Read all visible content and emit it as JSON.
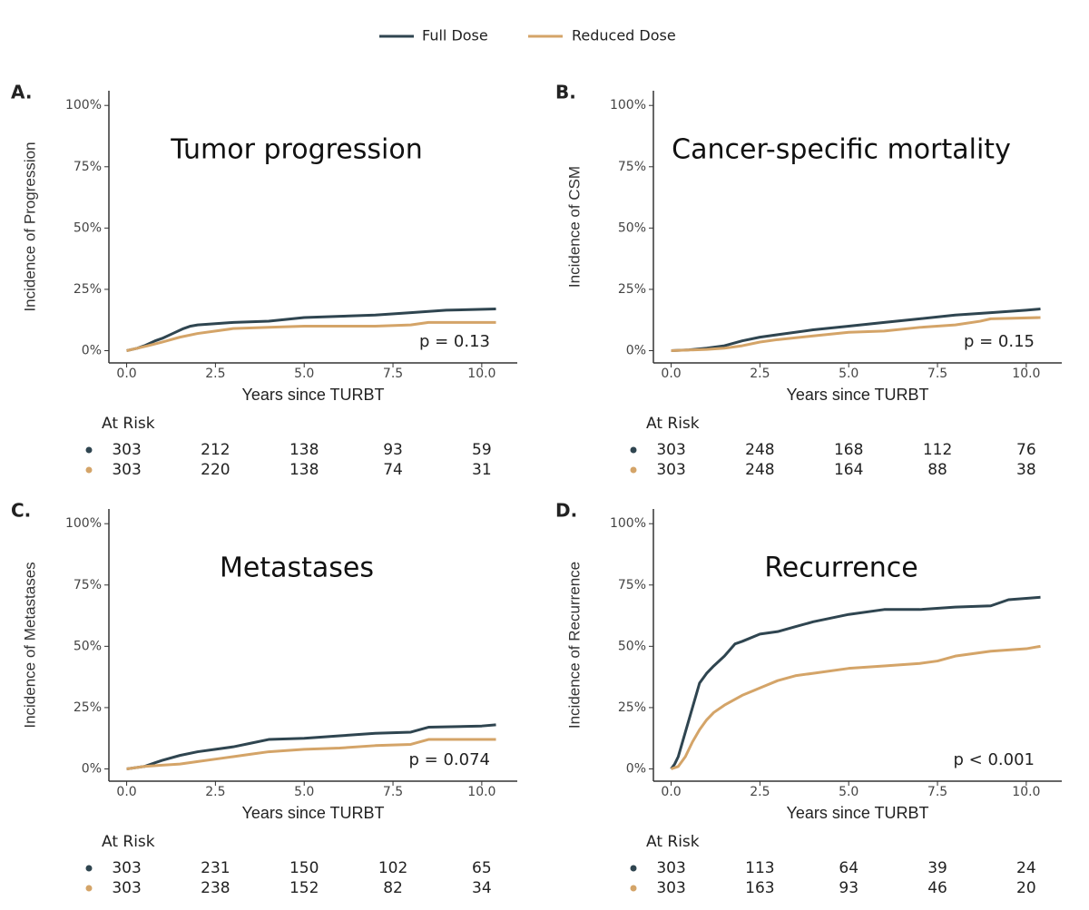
{
  "chart_data": [
    {
      "type": "line",
      "panel_label": "A.",
      "title": "Tumor progression",
      "ylabel": "Incidence of Progression",
      "xlabel": "Years since TURBT",
      "annotation": "p = 0.13",
      "xlim": [
        -0.5,
        11
      ],
      "ylim": [
        -5,
        106
      ],
      "xticks": [
        {
          "value": 0,
          "label": "0.0"
        },
        2.5,
        {
          "value": 5,
          "label": "5.0"
        },
        7.5,
        {
          "value": 10,
          "label": "10.0"
        }
      ],
      "yticks": [
        {
          "value": 0,
          "label": "0%"
        },
        {
          "value": 25,
          "label": "25%"
        },
        {
          "value": 50,
          "label": "50%"
        },
        {
          "value": 75,
          "label": "75%"
        },
        {
          "value": 100,
          "label": "100%"
        }
      ],
      "risk_title": "At Risk",
      "series": [
        {
          "name": "Full Dose",
          "color": "#2f4550",
          "x": [
            0,
            0.3,
            0.5,
            0.8,
            1,
            1.3,
            1.6,
            1.8,
            2,
            2.5,
            3,
            4,
            5,
            6,
            7,
            8,
            9,
            10.4
          ],
          "values": [
            0,
            1,
            2,
            4,
            5,
            7,
            9,
            10,
            10.5,
            11,
            11.5,
            12,
            13.5,
            14,
            14.5,
            15.5,
            16.5,
            17
          ],
          "at_risk": [
            303,
            212,
            138,
            93,
            59
          ]
        },
        {
          "name": "Reduced Dose",
          "color": "#d4a468",
          "x": [
            0,
            0.3,
            0.6,
            1,
            1.5,
            2,
            2.5,
            3,
            4,
            5,
            6,
            7,
            8,
            8.5,
            10.4
          ],
          "values": [
            0,
            1,
            2,
            3.5,
            5.5,
            7,
            8,
            9,
            9.5,
            10,
            10,
            10,
            10.5,
            11.5,
            11.5
          ],
          "at_risk": [
            303,
            220,
            138,
            74,
            31
          ]
        }
      ]
    },
    {
      "type": "line",
      "panel_label": "B.",
      "title": "Cancer-specific mortality",
      "ylabel": "Incidence of CSM",
      "xlabel": "Years since TURBT",
      "annotation": "p = 0.15",
      "xlim": [
        -0.5,
        11
      ],
      "ylim": [
        -5,
        106
      ],
      "xticks": [
        {
          "value": 0,
          "label": "0.0"
        },
        2.5,
        {
          "value": 5,
          "label": "5.0"
        },
        7.5,
        {
          "value": 10,
          "label": "10.0"
        }
      ],
      "yticks": [
        {
          "value": 0,
          "label": "0%"
        },
        {
          "value": 25,
          "label": "25%"
        },
        {
          "value": 50,
          "label": "50%"
        },
        {
          "value": 75,
          "label": "75%"
        },
        {
          "value": 100,
          "label": "100%"
        }
      ],
      "risk_title": "At Risk",
      "series": [
        {
          "name": "Full Dose",
          "color": "#2f4550",
          "x": [
            0,
            0.5,
            1,
            1.5,
            2,
            2.5,
            3,
            4,
            5,
            6,
            7,
            8,
            9,
            10,
            10.4
          ],
          "values": [
            0,
            0.3,
            1,
            2,
            4,
            5.5,
            6.5,
            8.5,
            10,
            11.5,
            13,
            14.5,
            15.5,
            16.5,
            17
          ],
          "at_risk": [
            303,
            248,
            168,
            112,
            76
          ]
        },
        {
          "name": "Reduced Dose",
          "color": "#d4a468",
          "x": [
            0,
            1,
            1.5,
            2,
            2.5,
            3,
            4,
            5,
            6,
            7,
            8,
            8.7,
            9,
            10.4
          ],
          "values": [
            0,
            0.5,
            1,
            2,
            3.5,
            4.5,
            6,
            7.5,
            8,
            9.5,
            10.5,
            12,
            13,
            13.5
          ],
          "at_risk": [
            303,
            248,
            164,
            88,
            38
          ]
        }
      ]
    },
    {
      "type": "line",
      "panel_label": "C.",
      "title": "Metastases",
      "ylabel": "Incidence of Metastases",
      "xlabel": "Years since TURBT",
      "annotation": "p = 0.074",
      "xlim": [
        -0.5,
        11
      ],
      "ylim": [
        -5,
        106
      ],
      "xticks": [
        {
          "value": 0,
          "label": "0.0"
        },
        2.5,
        {
          "value": 5,
          "label": "5.0"
        },
        7.5,
        {
          "value": 10,
          "label": "10.0"
        }
      ],
      "yticks": [
        {
          "value": 0,
          "label": "0%"
        },
        {
          "value": 25,
          "label": "25%"
        },
        {
          "value": 50,
          "label": "50%"
        },
        {
          "value": 75,
          "label": "75%"
        },
        {
          "value": 100,
          "label": "100%"
        }
      ],
      "risk_title": "At Risk",
      "series": [
        {
          "name": "Full Dose",
          "color": "#2f4550",
          "x": [
            0,
            0.5,
            0.8,
            1,
            1.5,
            2,
            2.5,
            3,
            3.5,
            4,
            5,
            6,
            7,
            8,
            8.5,
            10,
            10.4
          ],
          "values": [
            0,
            1,
            2.5,
            3.5,
            5.5,
            7,
            8,
            9,
            10.5,
            12,
            12.5,
            13.5,
            14.5,
            15,
            17,
            17.5,
            18
          ],
          "at_risk": [
            303,
            231,
            150,
            102,
            65
          ]
        },
        {
          "name": "Reduced Dose",
          "color": "#d4a468",
          "x": [
            0,
            0.5,
            1,
            1.5,
            2,
            2.5,
            3,
            3.5,
            4,
            5,
            6,
            7,
            8,
            8.5,
            10.4
          ],
          "values": [
            0,
            1,
            1.5,
            2,
            3,
            4,
            5,
            6,
            7,
            8,
            8.5,
            9.5,
            10,
            12,
            12
          ],
          "at_risk": [
            303,
            238,
            152,
            82,
            34
          ]
        }
      ]
    },
    {
      "type": "line",
      "panel_label": "D.",
      "title": "Recurrence",
      "ylabel": "Incidence of Recurrence",
      "xlabel": "Years since TURBT",
      "annotation": "p < 0.001",
      "xlim": [
        -0.5,
        11
      ],
      "ylim": [
        -5,
        106
      ],
      "xticks": [
        {
          "value": 0,
          "label": "0.0"
        },
        2.5,
        {
          "value": 5,
          "label": "5.0"
        },
        7.5,
        {
          "value": 10,
          "label": "10.0"
        }
      ],
      "yticks": [
        {
          "value": 0,
          "label": "0%"
        },
        {
          "value": 25,
          "label": "25%"
        },
        {
          "value": 50,
          "label": "50%"
        },
        {
          "value": 75,
          "label": "75%"
        },
        {
          "value": 100,
          "label": "100%"
        }
      ],
      "risk_title": "At Risk",
      "series": [
        {
          "name": "Full Dose",
          "color": "#2f4550",
          "x": [
            0,
            0.1,
            0.2,
            0.3,
            0.4,
            0.5,
            0.6,
            0.7,
            0.8,
            1,
            1.2,
            1.5,
            1.8,
            2,
            2.5,
            3,
            3.5,
            4,
            5,
            6,
            7,
            8,
            9,
            9.5,
            10.4
          ],
          "values": [
            0,
            2,
            5,
            10,
            15,
            20,
            25,
            30,
            35,
            39,
            42,
            46,
            51,
            52,
            55,
            56,
            58,
            60,
            63,
            65,
            65,
            66,
            66.5,
            69,
            70
          ],
          "at_risk": [
            303,
            113,
            64,
            39,
            24
          ]
        },
        {
          "name": "Reduced Dose",
          "color": "#d4a468",
          "x": [
            0,
            0.2,
            0.3,
            0.4,
            0.5,
            0.6,
            0.8,
            1,
            1.2,
            1.5,
            2,
            2.5,
            3,
            3.5,
            4,
            5,
            6,
            7,
            7.5,
            8,
            9,
            10,
            10.4
          ],
          "values": [
            0,
            1,
            3,
            5,
            8,
            11,
            16,
            20,
            23,
            26,
            30,
            33,
            36,
            38,
            39,
            41,
            42,
            43,
            44,
            46,
            48,
            49,
            50
          ],
          "at_risk": [
            303,
            163,
            93,
            46,
            20
          ]
        }
      ]
    }
  ]
}
